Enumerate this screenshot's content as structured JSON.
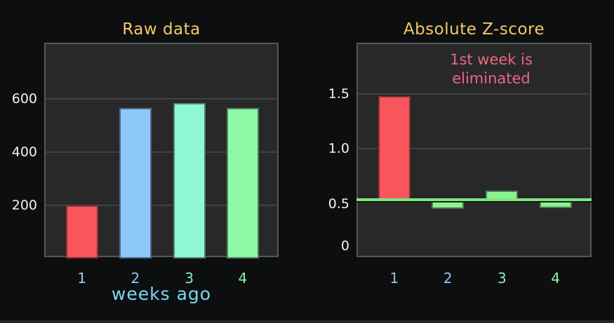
{
  "figure": {
    "background": "#0d0e10",
    "plot_background": "#282829"
  },
  "chart_data": [
    {
      "type": "bar",
      "title": "Raw data",
      "title_color": "#f3c969",
      "categories": [
        "1",
        "2",
        "3",
        "4"
      ],
      "category_colors": [
        "#a5c9e0",
        "#8fc6f4",
        "#83eacc",
        "#92f2a4"
      ],
      "values": [
        200,
        565,
        585,
        565
      ],
      "bar_colors": [
        "#f9555c",
        "#8ec7f9",
        "#8ff8d6",
        "#8ef8a4"
      ],
      "bar_base": 0,
      "xlabel": "weeks ago",
      "xlabel_color": "#7bd8ee",
      "ylabel": "",
      "ylim": [
        0,
        805
      ],
      "yticks": [
        {
          "label": "200",
          "value": 200
        },
        {
          "label": "400",
          "value": 400
        },
        {
          "label": "600",
          "value": 600
        }
      ],
      "gridlines": [
        200,
        400,
        600
      ],
      "ytick_color": "#f2f2f2",
      "grid": "horizontal",
      "legend": "none"
    },
    {
      "type": "bar",
      "title": "Absolute Z-score",
      "title_color": "#f3c969",
      "categories": [
        "1",
        "2",
        "3",
        "4"
      ],
      "category_colors": [
        "#93c4e8",
        "#8fc6f4",
        "#83eacc",
        "#92f2a4"
      ],
      "values": [
        1.48,
        0.45,
        0.62,
        0.46
      ],
      "bar_colors": [
        "#f9555c",
        "#8bf193",
        "#8bf193",
        "#8bf193"
      ],
      "bar_base": 0.53,
      "threshold": {
        "value": 0.53,
        "color": "#7ce87c"
      },
      "annotation": {
        "text_lines": [
          "1st week is",
          "eliminated"
        ],
        "color": "#ee6581"
      },
      "xlabel": "",
      "ylabel": "",
      "ylim": [
        0,
        1.95
      ],
      "yticks": [
        {
          "label": "0",
          "value": 0
        },
        {
          "label": "0.5",
          "value": 0.5
        },
        {
          "label": "1.0",
          "value": 1.0
        },
        {
          "label": "1.5",
          "value": 1.5
        }
      ],
      "gridlines": [
        1.0,
        1.5
      ],
      "ytick_color": "#f2f2f2",
      "grid": "horizontal",
      "legend": "none"
    }
  ]
}
